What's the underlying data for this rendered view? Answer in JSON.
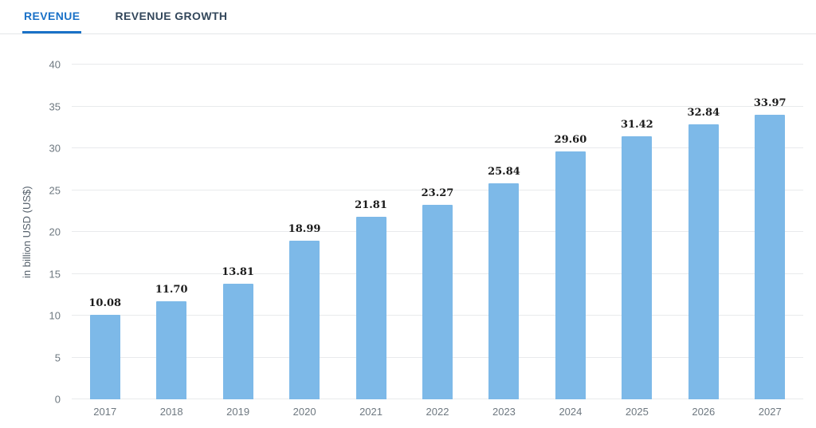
{
  "tabs": [
    {
      "label": "REVENUE",
      "active": true
    },
    {
      "label": "REVENUE GROWTH",
      "active": false
    }
  ],
  "colors": {
    "accent_blue": "#1a71c7",
    "tab_inactive": "#33475b",
    "bar_fill": "#7db9e8",
    "gridline": "#e8eaec",
    "tick_text": "#6e7880",
    "value_label_text": "#1b1b1b"
  },
  "chart_data": {
    "type": "bar",
    "title": "",
    "xlabel": "",
    "ylabel": "in billion USD (US$)",
    "categories": [
      "2017",
      "2018",
      "2019",
      "2020",
      "2021",
      "2022",
      "2023",
      "2024",
      "2025",
      "2026",
      "2027"
    ],
    "values": [
      10.08,
      11.7,
      13.81,
      18.99,
      21.81,
      23.27,
      25.84,
      29.6,
      31.42,
      32.84,
      33.97
    ],
    "value_labels": [
      "10.08",
      "11.70",
      "13.81",
      "18.99",
      "21.81",
      "23.27",
      "25.84",
      "29.60",
      "31.42",
      "32.84",
      "33.97"
    ],
    "ylim": [
      0,
      40
    ],
    "ytick_step": 5,
    "ytick_labels": [
      "0",
      "5",
      "10",
      "15",
      "20",
      "25",
      "30",
      "35",
      "40"
    ],
    "grid": true,
    "legend": "none",
    "bar_color": "#7db9e8"
  }
}
